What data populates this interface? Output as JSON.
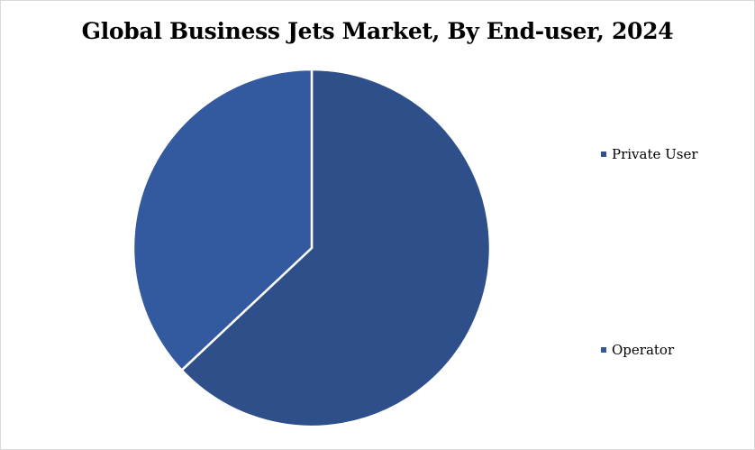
{
  "chart_data": {
    "type": "pie",
    "title": "Global Business Jets Market, By End-user, 2024",
    "categories": [
      "Private User",
      "Operator"
    ],
    "values": [
      63,
      37
    ],
    "colors": [
      "#2f4f8a",
      "#33599e"
    ],
    "start_angle_deg": 0,
    "direction": "clockwise",
    "legend_position": "right"
  }
}
